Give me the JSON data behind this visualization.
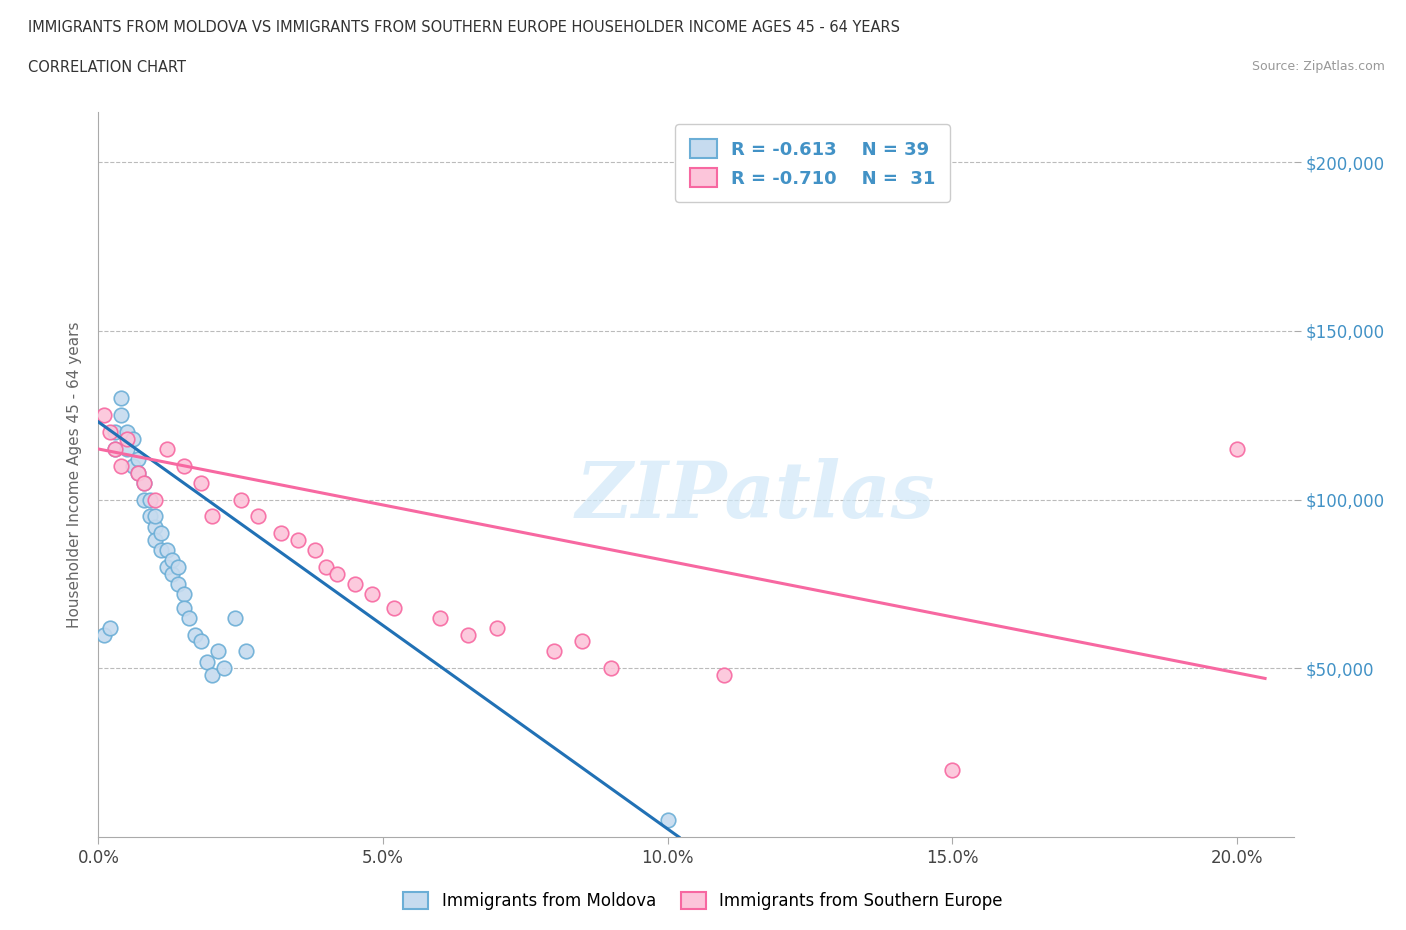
{
  "title_line1": "IMMIGRANTS FROM MOLDOVA VS IMMIGRANTS FROM SOUTHERN EUROPE HOUSEHOLDER INCOME AGES 45 - 64 YEARS",
  "title_line2": "CORRELATION CHART",
  "source_text": "Source: ZipAtlas.com",
  "ylabel": "Householder Income Ages 45 - 64 years",
  "xlim": [
    0.0,
    0.21
  ],
  "ylim": [
    0,
    215000
  ],
  "xtick_labels": [
    "0.0%",
    "5.0%",
    "10.0%",
    "15.0%",
    "20.0%"
  ],
  "xtick_values": [
    0.0,
    0.05,
    0.1,
    0.15,
    0.2
  ],
  "ytick_labels": [
    "$50,000",
    "$100,000",
    "$150,000",
    "$200,000"
  ],
  "ytick_values": [
    50000,
    100000,
    150000,
    200000
  ],
  "moldova_color_edge": "#6baed6",
  "moldova_color_fill": "#c6dbef",
  "southern_europe_color_edge": "#f768a1",
  "southern_europe_color_fill": "#fcc5da",
  "watermark": "ZIPatlas",
  "moldova_R": -0.613,
  "moldova_N": 39,
  "southern_europe_R": -0.71,
  "southern_europe_N": 31,
  "moldova_scatter_x": [
    0.001,
    0.002,
    0.003,
    0.003,
    0.004,
    0.004,
    0.005,
    0.005,
    0.006,
    0.006,
    0.007,
    0.007,
    0.008,
    0.008,
    0.009,
    0.009,
    0.01,
    0.01,
    0.01,
    0.011,
    0.011,
    0.012,
    0.012,
    0.013,
    0.013,
    0.014,
    0.014,
    0.015,
    0.015,
    0.016,
    0.017,
    0.018,
    0.019,
    0.02,
    0.021,
    0.022,
    0.024,
    0.026,
    0.1
  ],
  "moldova_scatter_y": [
    60000,
    62000,
    115000,
    120000,
    125000,
    130000,
    120000,
    115000,
    110000,
    118000,
    112000,
    108000,
    105000,
    100000,
    95000,
    100000,
    92000,
    88000,
    95000,
    85000,
    90000,
    80000,
    85000,
    78000,
    82000,
    75000,
    80000,
    72000,
    68000,
    65000,
    60000,
    58000,
    52000,
    48000,
    55000,
    50000,
    65000,
    55000,
    5000
  ],
  "moldova_scatter_sizes": [
    60,
    60,
    80,
    80,
    80,
    80,
    80,
    80,
    80,
    80,
    80,
    80,
    80,
    80,
    80,
    80,
    80,
    80,
    80,
    80,
    80,
    80,
    80,
    80,
    80,
    80,
    80,
    80,
    80,
    80,
    80,
    80,
    80,
    80,
    80,
    80,
    80,
    80,
    200
  ],
  "southern_europe_scatter_x": [
    0.001,
    0.002,
    0.003,
    0.004,
    0.005,
    0.007,
    0.008,
    0.01,
    0.012,
    0.015,
    0.018,
    0.02,
    0.025,
    0.028,
    0.032,
    0.035,
    0.038,
    0.04,
    0.042,
    0.045,
    0.048,
    0.052,
    0.06,
    0.065,
    0.07,
    0.08,
    0.085,
    0.09,
    0.11,
    0.15,
    0.2
  ],
  "southern_europe_scatter_y": [
    125000,
    120000,
    115000,
    110000,
    118000,
    108000,
    105000,
    100000,
    115000,
    110000,
    105000,
    95000,
    100000,
    95000,
    90000,
    88000,
    85000,
    80000,
    78000,
    75000,
    72000,
    68000,
    65000,
    60000,
    62000,
    55000,
    58000,
    50000,
    48000,
    20000,
    115000
  ],
  "southern_europe_scatter_sizes": [
    80,
    80,
    80,
    80,
    80,
    80,
    80,
    80,
    80,
    80,
    80,
    80,
    80,
    80,
    80,
    80,
    80,
    80,
    80,
    80,
    80,
    80,
    80,
    80,
    80,
    80,
    80,
    80,
    80,
    80,
    200
  ],
  "trendline_color_moldova": "#2171b5",
  "trendline_color_southern": "#f768a1",
  "moldova_trend_x": [
    0.0,
    0.102
  ],
  "moldova_trend_y": [
    123000,
    0
  ],
  "southern_trend_x": [
    0.0,
    0.205
  ],
  "southern_trend_y": [
    115000,
    47000
  ],
  "background_color": "#ffffff",
  "grid_color": "#bbbbbb",
  "title_color": "#333333",
  "axis_label_color": "#666666",
  "ytick_color": "#4292c6",
  "legend_text_color": "#4292c6"
}
